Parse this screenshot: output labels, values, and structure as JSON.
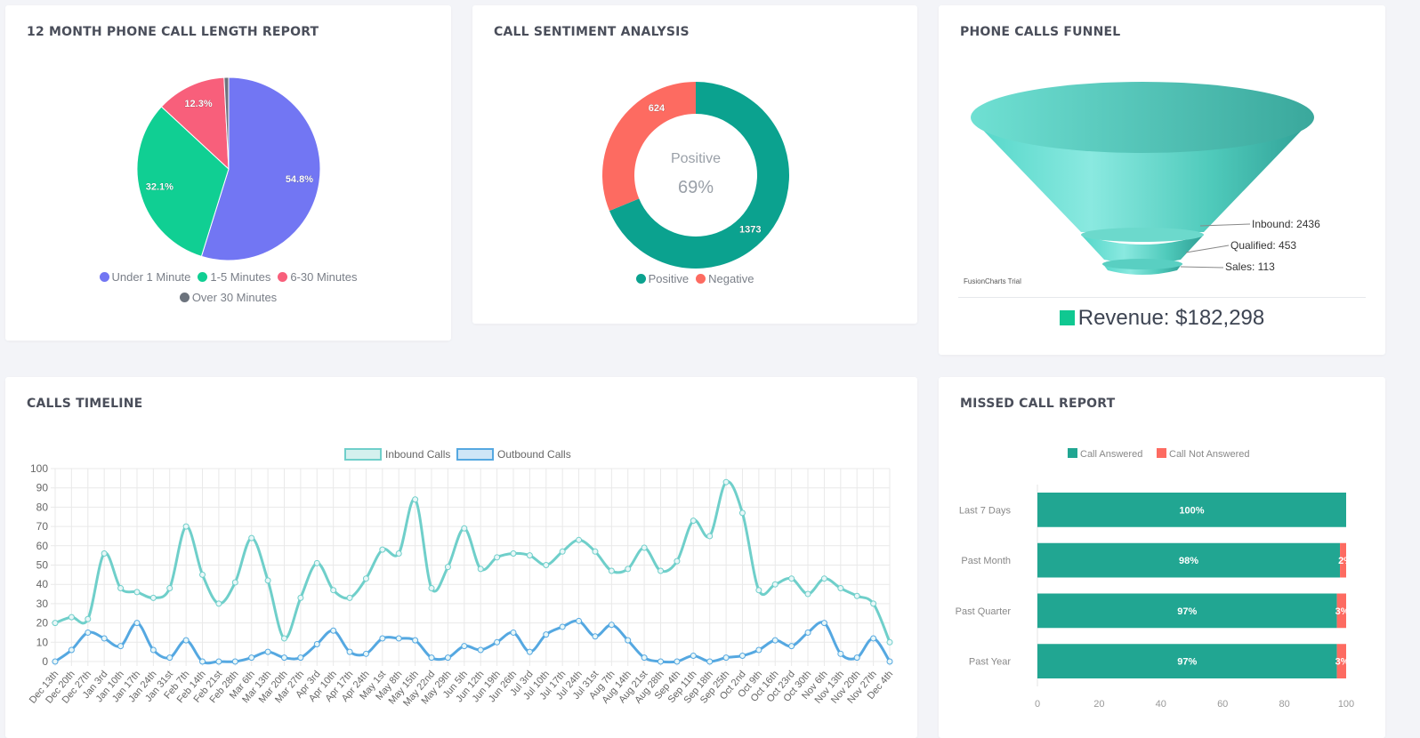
{
  "cards": {
    "pie": {
      "title": "12 MONTH PHONE CALL LENGTH REPORT"
    },
    "sentiment": {
      "title": "CALL SENTIMENT ANALYSIS",
      "center_label": "Positive",
      "center_value": "69%"
    },
    "funnel": {
      "title": "PHONE CALLS FUNNEL",
      "trial_text": "FusionCharts Trial",
      "revenue_label": "Revenue: $182,298"
    },
    "timeline": {
      "title": "CALLS TIMELINE"
    },
    "missed": {
      "title": "MISSED CALL REPORT"
    }
  },
  "chart_data": [
    {
      "type": "pie",
      "categories": [
        "Under 1 Minute",
        "1-5 Minutes",
        "6-30 Minutes",
        "Over 30 Minutes"
      ],
      "values": [
        54.8,
        32.1,
        12.3,
        0.8
      ],
      "labels": [
        "54.8%",
        "32.1%",
        "12.3%",
        ""
      ],
      "colors": [
        "#7276f3",
        "#10cf93",
        "#f85f7b",
        "#6c737d"
      ]
    },
    {
      "type": "pie",
      "categories": [
        "Positive",
        "Negative"
      ],
      "values": [
        1373,
        624
      ],
      "labels": [
        "1373",
        "624"
      ],
      "colors": [
        "#0ba28f",
        "#fd6b61"
      ]
    },
    {
      "type": "bar",
      "categories": [
        "Inbound",
        "Qualified",
        "Sales"
      ],
      "values": [
        2436,
        453,
        113
      ],
      "labels": [
        "Inbound: 2436",
        "Qualified: 453",
        "Sales: 113"
      ],
      "color": "#5bd8c9"
    },
    {
      "type": "line",
      "x": [
        "Dec 13th",
        "Dec 20th",
        "Dec 27th",
        "Jan 3rd",
        "Jan 10th",
        "Jan 17th",
        "Jan 24th",
        "Jan 31st",
        "Feb 7th",
        "Feb 14th",
        "Feb 21st",
        "Feb 28th",
        "Mar 6th",
        "Mar 13th",
        "Mar 20th",
        "Mar 27th",
        "Apr 3rd",
        "Apr 10th",
        "Apr 17th",
        "Apr 24th",
        "May 1st",
        "May 8th",
        "May 15th",
        "May 22nd",
        "May 29th",
        "Jun 5th",
        "Jun 12th",
        "Jun 19th",
        "Jun 26th",
        "Jul 3rd",
        "Jul 10th",
        "Jul 17th",
        "Jul 24th",
        "Jul 31st",
        "Aug 7th",
        "Aug 14th",
        "Aug 21st",
        "Aug 28th",
        "Sep 4th",
        "Sep 11th",
        "Sep 18th",
        "Sep 25th",
        "Oct 2nd",
        "Oct 9th",
        "Oct 16th",
        "Oct 23rd",
        "Oct 30th",
        "Nov 6th",
        "Nov 13th",
        "Nov 20th",
        "Nov 27th",
        "Dec 4th"
      ],
      "series": [
        {
          "name": "Inbound Calls",
          "color": "#6fcfca",
          "values": [
            20,
            23,
            22,
            56,
            38,
            36,
            33,
            38,
            70,
            45,
            30,
            41,
            64,
            42,
            12,
            33,
            51,
            37,
            33,
            43,
            58,
            56,
            84,
            38,
            49,
            69,
            48,
            54,
            56,
            55,
            50,
            57,
            63,
            57,
            47,
            48,
            59,
            47,
            52,
            73,
            65,
            93,
            77,
            37,
            40,
            43,
            35,
            43,
            38,
            34,
            30,
            10
          ]
        },
        {
          "name": "Outbound Calls",
          "color": "#55a8e1",
          "values": [
            0,
            6,
            15,
            12,
            8,
            20,
            6,
            2,
            11,
            0,
            0,
            0,
            2,
            5,
            2,
            2,
            9,
            16,
            5,
            4,
            12,
            12,
            11,
            2,
            2,
            8,
            6,
            10,
            15,
            5,
            14,
            18,
            21,
            13,
            19,
            11,
            2,
            0,
            0,
            3,
            0,
            2,
            3,
            6,
            11,
            8,
            15,
            20,
            4,
            2,
            12,
            0
          ]
        }
      ],
      "ylim": [
        0,
        100
      ],
      "yticks": [
        "0",
        "10",
        "20",
        "30",
        "40",
        "50",
        "60",
        "70",
        "80",
        "90",
        "100"
      ],
      "grid": true,
      "legend": "top"
    },
    {
      "type": "bar",
      "orientation": "horizontal",
      "stacked": true,
      "categories": [
        "Last 7 Days",
        "Past Month",
        "Past Quarter",
        "Past Year"
      ],
      "series": [
        {
          "name": "Call Answered",
          "color": "#21a692",
          "values": [
            100,
            98,
            97,
            97
          ],
          "labels": [
            "100%",
            "98%",
            "97%",
            "97%"
          ]
        },
        {
          "name": "Call Not Answered",
          "color": "#fd6b61",
          "values": [
            0,
            2,
            3,
            3
          ],
          "labels": [
            "",
            "2%",
            "3%",
            "3%"
          ]
        }
      ],
      "xlim": [
        0,
        100
      ],
      "xticks": [
        "0",
        "20",
        "40",
        "60",
        "80",
        "100"
      ],
      "legend": "top"
    }
  ]
}
